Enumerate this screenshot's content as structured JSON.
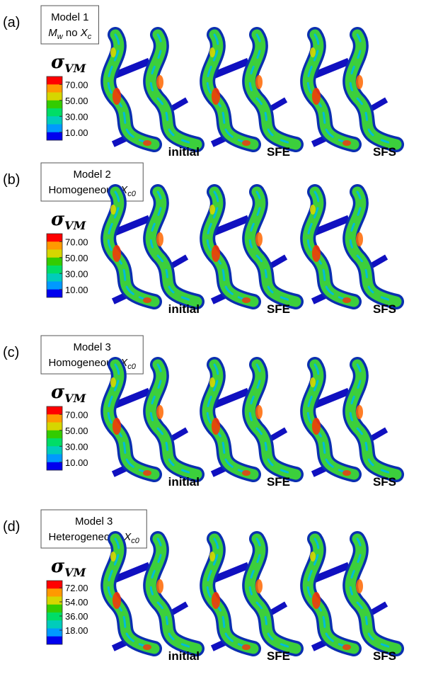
{
  "panels": [
    {
      "label": "(a)",
      "box": {
        "line1": "Model 1",
        "line2": [
          {
            "text": "M",
            "style": "italic"
          },
          {
            "text": "w",
            "style": "sub"
          },
          {
            "text": " no ",
            "style": "normal"
          },
          {
            "text": "X",
            "style": "italic"
          },
          {
            "text": "c",
            "style": "sub"
          }
        ]
      },
      "legend": {
        "symbol": "σ",
        "subscript": "VM",
        "colors": [
          "#ff0000",
          "#ff9900",
          "#d6d600",
          "#33cc00",
          "#00dd66",
          "#00ccbb",
          "#0099ff",
          "#0000ee"
        ],
        "clim": [
          0,
          80
        ],
        "ticks": [
          {
            "value": 70,
            "label": "70.00"
          },
          {
            "value": 50,
            "label": "50.00"
          },
          {
            "value": 30,
            "label": "30.00"
          },
          {
            "value": 10,
            "label": "10.00"
          }
        ]
      },
      "captions": [
        "initial",
        "SFE",
        "SFS"
      ]
    },
    {
      "label": "(b)",
      "box": {
        "line1": "Model 2",
        "line2": [
          {
            "text": "Homogeneous ",
            "style": "normal"
          },
          {
            "text": "X",
            "style": "italic"
          },
          {
            "text": "c0",
            "style": "sub"
          }
        ]
      },
      "legend": {
        "symbol": "σ",
        "subscript": "VM",
        "colors": [
          "#ff0000",
          "#ff9900",
          "#d6d600",
          "#33cc00",
          "#00dd66",
          "#00ccbb",
          "#0099ff",
          "#0000ee"
        ],
        "clim": [
          0,
          80
        ],
        "ticks": [
          {
            "value": 70,
            "label": "70.00"
          },
          {
            "value": 50,
            "label": "50.00"
          },
          {
            "value": 30,
            "label": "30.00"
          },
          {
            "value": 10,
            "label": "10.00"
          }
        ]
      },
      "captions": [
        "initial",
        "SFE",
        "SFS"
      ]
    },
    {
      "label": "(c)",
      "box": {
        "line1": "Model 3",
        "line2": [
          {
            "text": "Homogeneous ",
            "style": "normal"
          },
          {
            "text": "X",
            "style": "italic"
          },
          {
            "text": "c0",
            "style": "sub"
          }
        ]
      },
      "legend": {
        "symbol": "σ",
        "subscript": "VM",
        "colors": [
          "#ff0000",
          "#ff9900",
          "#d6d600",
          "#33cc00",
          "#00dd66",
          "#00ccbb",
          "#0099ff",
          "#0000ee"
        ],
        "clim": [
          0,
          80
        ],
        "ticks": [
          {
            "value": 70,
            "label": "70.00"
          },
          {
            "value": 50,
            "label": "50.00"
          },
          {
            "value": 30,
            "label": "30.00"
          },
          {
            "value": 10,
            "label": "10.00"
          }
        ]
      },
      "captions": [
        "initial",
        "SFE",
        "SFS"
      ]
    },
    {
      "label": "(d)",
      "box": {
        "line1": "Model 3",
        "line2": [
          {
            "text": "Heterogeneous ",
            "style": "normal"
          },
          {
            "text": "X",
            "style": "italic"
          },
          {
            "text": "c0",
            "style": "sub"
          }
        ]
      },
      "legend": {
        "symbol": "σ",
        "subscript": "VM",
        "colors": [
          "#ff0000",
          "#ff9900",
          "#d6d600",
          "#33cc00",
          "#00dd66",
          "#00ccbb",
          "#0099ff",
          "#0000ee"
        ],
        "clim": [
          0,
          81
        ],
        "ticks": [
          {
            "value": 72,
            "label": "72.00"
          },
          {
            "value": 54,
            "label": "54.00"
          },
          {
            "value": 36,
            "label": "36.00"
          },
          {
            "value": 18,
            "label": "18.00"
          }
        ]
      },
      "captions": [
        "initial",
        "SFE",
        "SFS"
      ]
    }
  ]
}
